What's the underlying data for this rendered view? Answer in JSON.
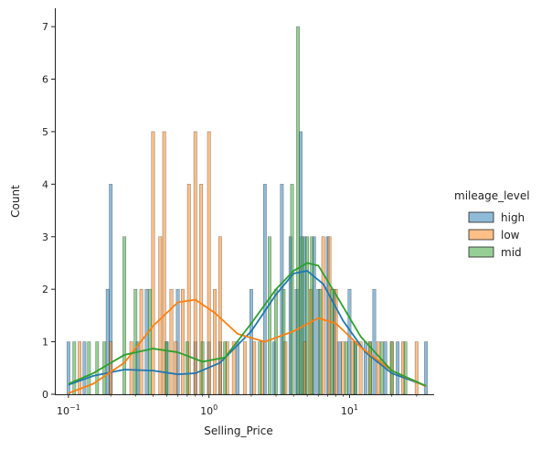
{
  "chart_data": {
    "type": "bar",
    "subtype": "histogram with KDE",
    "xlabel": "Selling_Price",
    "ylabel": "Count",
    "x_scale": "log",
    "xlim": [
      0.08,
      40
    ],
    "ylim": [
      0,
      7.35
    ],
    "x_ticks": [
      {
        "value": 0.1,
        "base": "10",
        "exp": "−1"
      },
      {
        "value": 1,
        "base": "10",
        "exp": "0"
      },
      {
        "value": 10,
        "base": "10",
        "exp": "1"
      }
    ],
    "y_ticks": [
      0,
      1,
      2,
      3,
      4,
      5,
      6,
      7
    ],
    "grid": false,
    "legend": {
      "title": "mileage_level",
      "position": "right",
      "entries": [
        "high",
        "low",
        "mid"
      ]
    },
    "series": [
      {
        "name": "high",
        "color": "#1f77b4",
        "histogram": [
          [
            0.1,
            1
          ],
          [
            0.13,
            1
          ],
          [
            0.2,
            4
          ],
          [
            0.19,
            2
          ],
          [
            0.31,
            1
          ],
          [
            0.36,
            2
          ],
          [
            0.5,
            1
          ],
          [
            0.6,
            2
          ],
          [
            0.8,
            1
          ],
          [
            1.0,
            1
          ],
          [
            1.2,
            1
          ],
          [
            1.6,
            1
          ],
          [
            2.0,
            2
          ],
          [
            2.5,
            4
          ],
          [
            2.9,
            1
          ],
          [
            3.3,
            4
          ],
          [
            3.8,
            3
          ],
          [
            4.2,
            2
          ],
          [
            4.5,
            5
          ],
          [
            4.8,
            3
          ],
          [
            5.6,
            3
          ],
          [
            6.0,
            2
          ],
          [
            7.0,
            3
          ],
          [
            7.8,
            2
          ],
          [
            8.5,
            1
          ],
          [
            10,
            2
          ],
          [
            11,
            1
          ],
          [
            13,
            1
          ],
          [
            15,
            2
          ],
          [
            18,
            1
          ],
          [
            22,
            1
          ],
          [
            35,
            1
          ]
        ],
        "kde": [
          [
            0.1,
            0.18
          ],
          [
            0.15,
            0.35
          ],
          [
            0.25,
            0.47
          ],
          [
            0.4,
            0.45
          ],
          [
            0.6,
            0.38
          ],
          [
            0.8,
            0.4
          ],
          [
            1.2,
            0.6
          ],
          [
            2.0,
            1.2
          ],
          [
            3.0,
            1.9
          ],
          [
            4.0,
            2.3
          ],
          [
            5.0,
            2.35
          ],
          [
            6.5,
            2.1
          ],
          [
            9.0,
            1.4
          ],
          [
            13,
            0.8
          ],
          [
            20,
            0.4
          ],
          [
            35,
            0.16
          ]
        ]
      },
      {
        "name": "low",
        "color": "#ff7f0e",
        "histogram": [
          [
            0.12,
            1
          ],
          [
            0.2,
            1
          ],
          [
            0.28,
            1
          ],
          [
            0.33,
            2
          ],
          [
            0.4,
            5
          ],
          [
            0.45,
            3
          ],
          [
            0.48,
            5
          ],
          [
            0.54,
            2
          ],
          [
            0.58,
            1
          ],
          [
            0.65,
            2
          ],
          [
            0.72,
            4
          ],
          [
            0.8,
            5
          ],
          [
            0.88,
            4
          ],
          [
            1.0,
            5
          ],
          [
            1.1,
            2
          ],
          [
            1.2,
            3
          ],
          [
            1.35,
            1
          ],
          [
            1.5,
            1
          ],
          [
            1.8,
            1
          ],
          [
            2.1,
            1
          ],
          [
            2.4,
            1
          ],
          [
            3.5,
            1
          ],
          [
            4.8,
            1
          ],
          [
            5.3,
            2
          ],
          [
            6.5,
            3
          ],
          [
            7.2,
            3
          ],
          [
            8.0,
            2
          ],
          [
            9.0,
            1
          ],
          [
            10.5,
            1
          ],
          [
            12,
            1
          ],
          [
            14,
            1
          ],
          [
            16,
            1
          ],
          [
            20,
            1
          ],
          [
            24,
            1
          ],
          [
            30,
            1
          ]
        ],
        "kde": [
          [
            0.1,
            0.02
          ],
          [
            0.15,
            0.2
          ],
          [
            0.25,
            0.6
          ],
          [
            0.4,
            1.3
          ],
          [
            0.6,
            1.75
          ],
          [
            0.8,
            1.8
          ],
          [
            1.1,
            1.55
          ],
          [
            1.6,
            1.15
          ],
          [
            2.5,
            1.0
          ],
          [
            4.0,
            1.2
          ],
          [
            6.0,
            1.45
          ],
          [
            8.0,
            1.35
          ],
          [
            12,
            0.9
          ],
          [
            20,
            0.45
          ],
          [
            35,
            0.15
          ]
        ]
      },
      {
        "name": "mid",
        "color": "#2ca02c",
        "histogram": [
          [
            0.11,
            1
          ],
          [
            0.14,
            1
          ],
          [
            0.16,
            1
          ],
          [
            0.18,
            1
          ],
          [
            0.25,
            3
          ],
          [
            0.3,
            2
          ],
          [
            0.38,
            2
          ],
          [
            0.5,
            1
          ],
          [
            0.7,
            1
          ],
          [
            0.9,
            1
          ],
          [
            1.3,
            1
          ],
          [
            2.3,
            1
          ],
          [
            2.7,
            3
          ],
          [
            3.0,
            2
          ],
          [
            3.4,
            2
          ],
          [
            3.9,
            4
          ],
          [
            4.3,
            7
          ],
          [
            4.6,
            3
          ],
          [
            5.0,
            3
          ],
          [
            5.4,
            3
          ],
          [
            6.2,
            2
          ],
          [
            7.5,
            2
          ],
          [
            9.5,
            1
          ],
          [
            11,
            1
          ],
          [
            14,
            1
          ],
          [
            17,
            1
          ],
          [
            20,
            1
          ],
          [
            25,
            1
          ]
        ],
        "kde": [
          [
            0.1,
            0.2
          ],
          [
            0.15,
            0.4
          ],
          [
            0.25,
            0.75
          ],
          [
            0.4,
            0.87
          ],
          [
            0.6,
            0.8
          ],
          [
            0.9,
            0.62
          ],
          [
            1.3,
            0.7
          ],
          [
            2.0,
            1.35
          ],
          [
            3.0,
            2.0
          ],
          [
            4.0,
            2.35
          ],
          [
            5.0,
            2.5
          ],
          [
            6.0,
            2.45
          ],
          [
            8.0,
            1.9
          ],
          [
            12,
            1.1
          ],
          [
            20,
            0.45
          ],
          [
            35,
            0.16
          ]
        ]
      }
    ]
  }
}
